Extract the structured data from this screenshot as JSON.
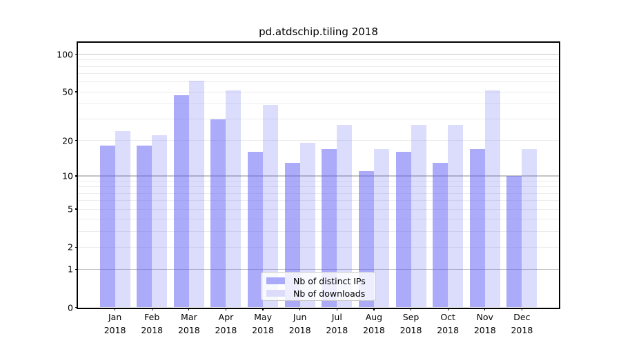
{
  "title": "pd.atdschip.tiling 2018",
  "chart_data": {
    "type": "bar",
    "title": "pd.atdschip.tiling 2018",
    "categories": [
      "Jan",
      "Feb",
      "Mar",
      "Apr",
      "May",
      "Jun",
      "Jul",
      "Aug",
      "Sep",
      "Oct",
      "Nov",
      "Dec"
    ],
    "year_label": "2018",
    "series": [
      {
        "key": "distinct-ips",
        "name": "Nb of distinct IPs",
        "legend_color": "#aaaafa",
        "fill": "rgba(88,88,246,0.5)",
        "values": [
          18,
          18,
          47,
          30,
          16,
          13,
          17,
          11,
          16,
          13,
          17,
          10
        ]
      },
      {
        "key": "downloads",
        "name": "Nb of downloads",
        "legend_color": "#dcdcfa",
        "fill": "rgba(88,88,246,0.21)",
        "values": [
          24,
          22,
          61,
          51,
          39,
          19,
          27,
          17,
          27,
          27,
          51,
          17
        ]
      }
    ],
    "yscale": "log1p",
    "ylim": [
      0,
      123
    ],
    "yticks": [
      {
        "label": "100",
        "value": 100
      },
      {
        "label": "50",
        "value": 50
      },
      {
        "label": "20",
        "value": 20
      },
      {
        "label": "10",
        "value": 10
      },
      {
        "label": "5",
        "value": 5
      },
      {
        "label": "2",
        "value": 2
      },
      {
        "label": "1",
        "value": 1
      },
      {
        "label": "0",
        "value": 0
      }
    ],
    "major_grid_values": [
      1,
      10,
      100
    ],
    "minor_grid_values": [
      2,
      3,
      4,
      5,
      6,
      7,
      8,
      9,
      20,
      30,
      40,
      50,
      60,
      70,
      80,
      90
    ],
    "grid": true,
    "legend_position": "lower-center"
  }
}
